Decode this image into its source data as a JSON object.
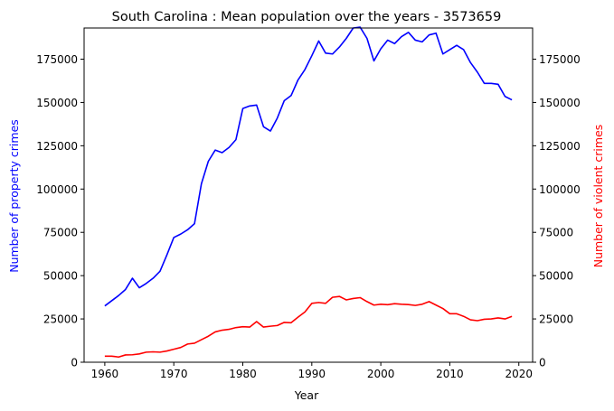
{
  "chart_data": {
    "type": "line",
    "title": "South Carolina : Mean population over the years - 3573659",
    "xlabel": "Year",
    "ylabel_left": "Number of property crimes",
    "ylabel_right": "Number of violent crimes",
    "xlim": [
      1957,
      2022
    ],
    "ylim": [
      0,
      193000
    ],
    "x_ticks": [
      1960,
      1970,
      1980,
      1990,
      2000,
      2010,
      2020
    ],
    "x_tick_labels": [
      "1960",
      "1970",
      "1980",
      "1990",
      "2000",
      "2010",
      "2020"
    ],
    "y_ticks": [
      0,
      25000,
      50000,
      75000,
      100000,
      125000,
      150000,
      175000
    ],
    "y_tick_labels": [
      "0",
      "25000",
      "50000",
      "75000",
      "100000",
      "125000",
      "150000",
      "175000"
    ],
    "grid": false,
    "colors": {
      "property": "#0000ff",
      "violent": "#ff0000",
      "axes": "#000000"
    },
    "x": [
      1960,
      1961,
      1962,
      1963,
      1964,
      1965,
      1966,
      1967,
      1968,
      1969,
      1970,
      1971,
      1972,
      1973,
      1974,
      1975,
      1976,
      1977,
      1978,
      1979,
      1980,
      1981,
      1982,
      1983,
      1984,
      1985,
      1986,
      1987,
      1988,
      1989,
      1990,
      1991,
      1992,
      1993,
      1994,
      1995,
      1996,
      1997,
      1998,
      1999,
      2000,
      2001,
      2002,
      2003,
      2004,
      2005,
      2006,
      2007,
      2008,
      2009,
      2010,
      2011,
      2012,
      2013,
      2014,
      2015,
      2016,
      2017,
      2018,
      2019
    ],
    "series": [
      {
        "axis": "left",
        "color": "#0000ff",
        "values": [
          32500,
          35500,
          38500,
          42000,
          48500,
          43000,
          45500,
          48500,
          52500,
          62000,
          72000,
          74000,
          76500,
          80000,
          103000,
          116000,
          122500,
          121000,
          124000,
          128500,
          146500,
          148000,
          148500,
          136000,
          133500,
          141000,
          151000,
          154000,
          163000,
          169000,
          177000,
          185500,
          178500,
          178000,
          182000,
          187000,
          193000,
          193500,
          187000,
          174000,
          181000,
          186000,
          184000,
          188000,
          190500,
          186000,
          185000,
          189000,
          190000,
          178000,
          180500,
          183000,
          180500,
          173000,
          167500,
          161000,
          161000,
          160500,
          153500,
          151500
        ]
      },
      {
        "axis": "right",
        "color": "#ff0000",
        "values": [
          3500,
          3500,
          3000,
          4200,
          4300,
          4800,
          5800,
          6000,
          5800,
          6500,
          7500,
          8500,
          10500,
          11000,
          13000,
          15000,
          17500,
          18500,
          19000,
          20000,
          20500,
          20300,
          23500,
          20300,
          20800,
          21200,
          23000,
          22800,
          26000,
          29000,
          34000,
          34500,
          34000,
          37500,
          38000,
          36000,
          36800,
          37300,
          35000,
          33000,
          33500,
          33200,
          33800,
          33500,
          33300,
          32800,
          33500,
          35000,
          33000,
          31000,
          28000,
          28000,
          26500,
          24500,
          24000,
          24800,
          25000,
          25600,
          25000,
          26500
        ]
      }
    ]
  }
}
